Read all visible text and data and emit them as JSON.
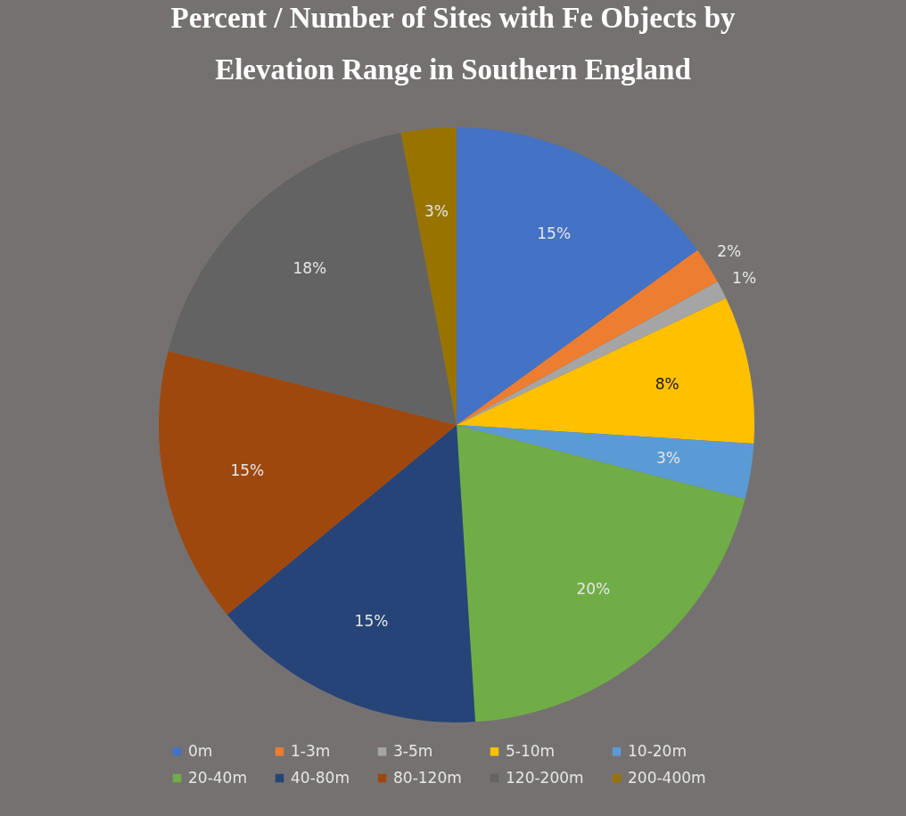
{
  "chart_data": {
    "type": "pie",
    "title": "Percent / Number of Sites with Fe Objects by Elevation Range in Southern England",
    "categories": [
      "0m",
      "1-3m",
      "3-5m",
      "5-10m",
      "10-20m",
      "20-40m",
      "40-80m",
      "80-120m",
      "120-200m",
      "200-400m"
    ],
    "values": [
      15,
      2,
      1,
      8,
      3,
      20,
      15,
      15,
      18,
      3
    ],
    "value_labels": [
      "15%",
      "2%",
      "1%",
      "8%",
      "3%",
      "20%",
      "15%",
      "15%",
      "18%",
      "3%"
    ],
    "colors": [
      "#4472c4",
      "#ed7d31",
      "#a5a5a5",
      "#ffc000",
      "#5b9bd5",
      "#70ad47",
      "#264478",
      "#9e480e",
      "#636363",
      "#997300"
    ],
    "legend": "bottom"
  }
}
